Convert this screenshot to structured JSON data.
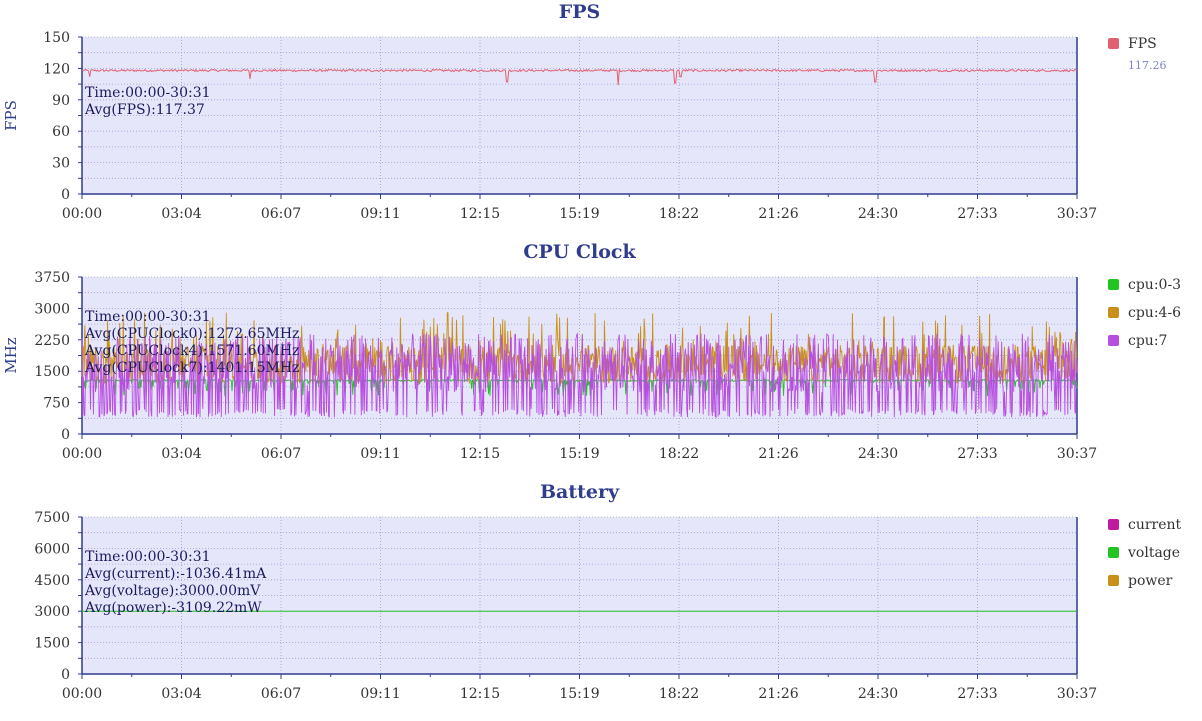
{
  "chart_data": [
    {
      "type": "line",
      "title": "FPS",
      "ylabel": "FPS",
      "xlim": [
        "00:00",
        "30:37"
      ],
      "x_ticks": [
        "00:00",
        "03:04",
        "06:07",
        "09:11",
        "12:15",
        "15:19",
        "18:22",
        "21:26",
        "24:30",
        "27:33",
        "30:37"
      ],
      "ylim": [
        0,
        150
      ],
      "y_ticks": [
        "0",
        "30",
        "60",
        "90",
        "120",
        "150"
      ],
      "grid": true,
      "annotations": [
        "Time:00:00-30:31",
        "Avg(FPS):117.37"
      ],
      "series": [
        {
          "name": "FPS",
          "legend_value": "117.26",
          "color": "#e06070",
          "baseline": 118,
          "dips": [
            {
              "time": "00:14",
              "value": 112
            },
            {
              "time": "05:10",
              "value": 110
            },
            {
              "time": "13:05",
              "value": 107
            },
            {
              "time": "16:30",
              "value": 104
            },
            {
              "time": "18:15",
              "value": 106
            },
            {
              "time": "18:25",
              "value": 112
            },
            {
              "time": "24:25",
              "value": 107
            }
          ]
        }
      ]
    },
    {
      "type": "line",
      "title": "CPU Clock",
      "ylabel": "MHz",
      "xlim": [
        "00:00",
        "30:37"
      ],
      "x_ticks": [
        "00:00",
        "03:04",
        "06:07",
        "09:11",
        "12:15",
        "15:19",
        "18:22",
        "21:26",
        "24:30",
        "27:33",
        "30:37"
      ],
      "ylim": [
        0,
        3750
      ],
      "y_ticks": [
        "0",
        "750",
        "1500",
        "2250",
        "3000",
        "3750"
      ],
      "grid": true,
      "annotations": [
        "Time:00:00-30:31",
        "Avg(CPUClock0):1272.65MHz",
        "Avg(CPUClock4):1571.60MHz",
        "Avg(CPUClock7):1401.15MHz"
      ],
      "series": [
        {
          "name": "cpu:0-3",
          "color": "#22c422",
          "typical_range": [
            1000,
            1300
          ]
        },
        {
          "name": "cpu:4-6",
          "color": "#c8901a",
          "typical_range": [
            1200,
            2900
          ]
        },
        {
          "name": "cpu:7",
          "color": "#b84ee0",
          "typical_range": [
            400,
            2500
          ]
        }
      ]
    },
    {
      "type": "line",
      "title": "Battery",
      "ylabel": "",
      "xlim": [
        "00:00",
        "30:37"
      ],
      "x_ticks": [
        "00:00",
        "03:04",
        "06:07",
        "09:11",
        "12:15",
        "15:19",
        "18:22",
        "21:26",
        "24:30",
        "27:33",
        "30:37"
      ],
      "ylim": [
        0,
        7500
      ],
      "y_ticks": [
        "0",
        "1500",
        "3000",
        "4500",
        "6000",
        "7500"
      ],
      "grid": true,
      "annotations": [
        "Time:00:00-30:31",
        "Avg(current):-1036.41mA",
        "Avg(voltage):3000.00mV",
        "Avg(power):-3109.22mW"
      ],
      "series": [
        {
          "name": "current",
          "color": "#c01aa0",
          "values": []
        },
        {
          "name": "voltage",
          "color": "#22c422",
          "constant": 3000
        },
        {
          "name": "power",
          "color": "#c8901a",
          "values": []
        }
      ]
    }
  ]
}
